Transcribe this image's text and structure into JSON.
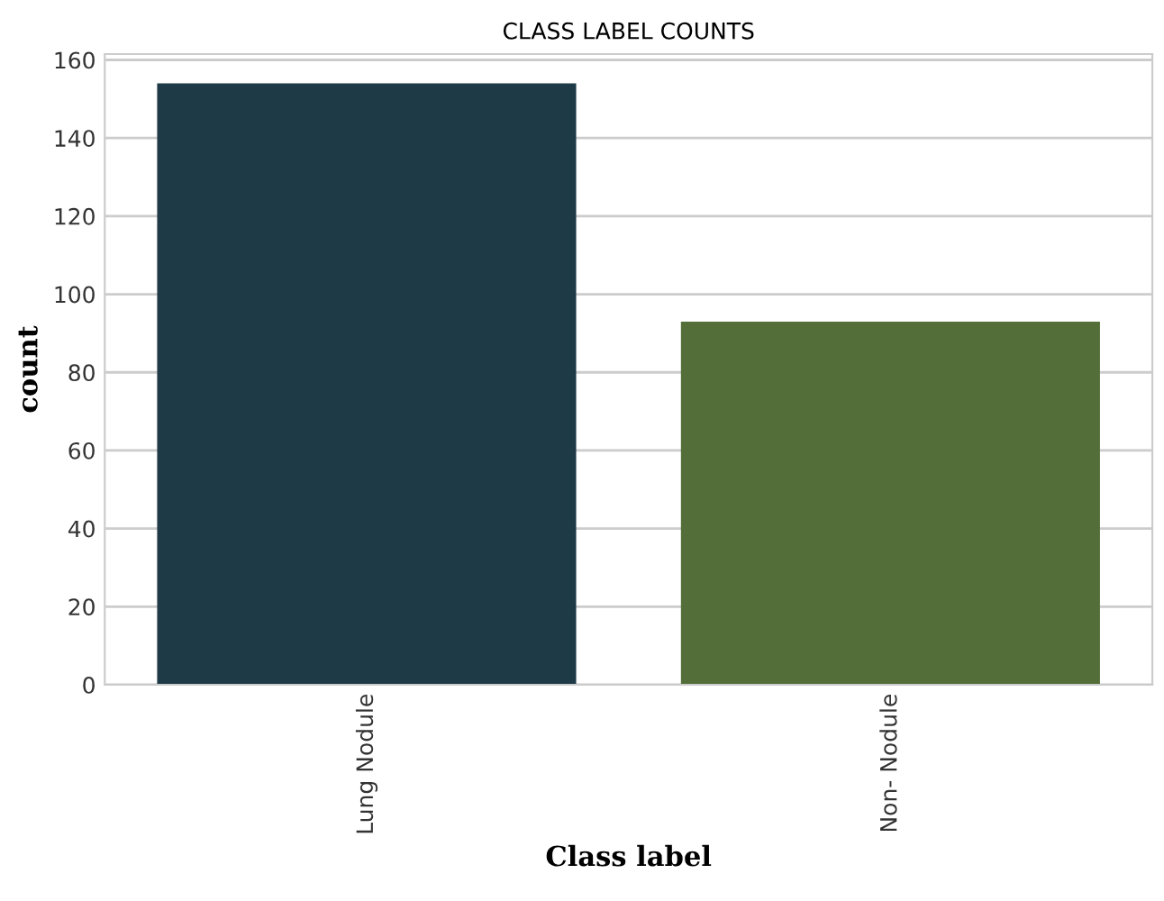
{
  "chart_data": {
    "type": "bar",
    "title": "CLASS LABEL COUNTS",
    "xlabel": "Class label",
    "ylabel": "count",
    "categories": [
      "Lung Nodule",
      "Non- Nodule"
    ],
    "values": [
      154,
      93
    ],
    "colors": [
      "#1f3a47",
      "#546e3a"
    ],
    "ylim": [
      0,
      161.5
    ],
    "yticks": [
      0,
      20,
      40,
      60,
      80,
      100,
      120,
      140,
      160
    ],
    "grid": "y"
  }
}
